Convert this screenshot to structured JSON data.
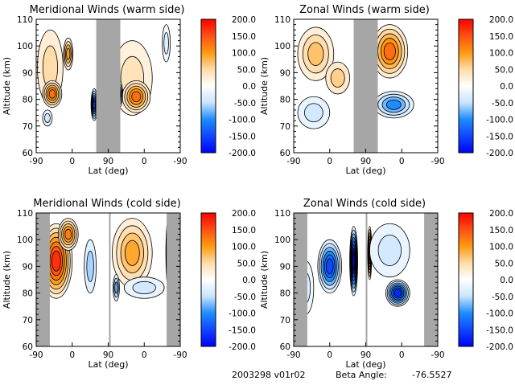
{
  "footer": {
    "date_version": "2003298 v01r02",
    "beta_label": "Beta Angle:",
    "beta_value": "-76.5527"
  },
  "chart_data": [
    {
      "type": "heatmap",
      "subtype": "filled-contour",
      "title": "Meridional Winds (warm side)",
      "xlabel": "Lat (deg)",
      "ylabel": "Altitude (km)",
      "x_ticks": [
        "-90",
        "0",
        "90",
        "0",
        "-90"
      ],
      "y_ticks": [
        "60",
        "70",
        "80",
        "90",
        "100",
        "110"
      ],
      "ylim": [
        60,
        110
      ],
      "colorbar": {
        "range": [
          -200,
          200
        ],
        "ticks": [
          "200.0",
          "150.0",
          "100.0",
          "50.0",
          "0.0",
          "-50.0",
          "-100.0",
          "-150.0",
          "-200.0"
        ]
      },
      "no_data": [
        {
          "leg": 1,
          "from": 60,
          "to": 90
        },
        {
          "leg": 2,
          "from": 90,
          "to": 60
        }
      ],
      "features": [
        {
          "leg": 1,
          "lat": -55,
          "alt": 92,
          "value": 50,
          "dlat": 32,
          "dalt": 14
        },
        {
          "leg": 1,
          "lat": -50,
          "alt": 82,
          "value": 130,
          "dlat": 24,
          "dalt": 5
        },
        {
          "leg": 1,
          "lat": -10,
          "alt": 97,
          "value": 100,
          "dlat": 12,
          "dalt": 6
        },
        {
          "leg": 2,
          "lat": 30,
          "alt": 88,
          "value": 40,
          "dlat": 50,
          "dalt": 14
        },
        {
          "leg": 2,
          "lat": 20,
          "alt": 81,
          "value": 130,
          "dlat": 35,
          "dalt": 6
        },
        {
          "leg": 1,
          "lat": 55,
          "alt": 78,
          "value": -150,
          "dlat": 8,
          "dalt": 6
        },
        {
          "leg": 2,
          "lat": 62,
          "alt": 82,
          "value": -100,
          "dlat": 8,
          "dalt": 5
        },
        {
          "leg": 1,
          "lat": -62,
          "alt": 73,
          "value": -40,
          "dlat": 12,
          "dalt": 3
        },
        {
          "leg": 2,
          "lat": -55,
          "alt": 101,
          "value": -30,
          "dlat": 10,
          "dalt": 7
        }
      ]
    },
    {
      "type": "heatmap",
      "subtype": "filled-contour",
      "title": "Zonal Winds (warm side)",
      "xlabel": "Lat (deg)",
      "ylabel": "Altitude (km)",
      "x_ticks": [
        "-90",
        "0",
        "90",
        "0",
        "-90"
      ],
      "y_ticks": [
        "60",
        "70",
        "80",
        "90",
        "100",
        "110"
      ],
      "ylim": [
        60,
        110
      ],
      "colorbar": {
        "range": [
          -200,
          200
        ],
        "ticks": [
          "200.0",
          "150.0",
          "100.0",
          "50.0",
          "0.0",
          "-50.0",
          "-100.0",
          "-150.0",
          "-200.0"
        ]
      },
      "no_data": [
        {
          "leg": 1,
          "from": 60,
          "to": 90
        },
        {
          "leg": 2,
          "from": 90,
          "to": 60
        }
      ],
      "features": [
        {
          "leg": 1,
          "lat": -35,
          "alt": 97,
          "value": 70,
          "dlat": 45,
          "dalt": 10
        },
        {
          "leg": 1,
          "lat": 20,
          "alt": 88,
          "value": 60,
          "dlat": 30,
          "dalt": 6
        },
        {
          "leg": 2,
          "lat": 30,
          "alt": 98,
          "value": 130,
          "dlat": 45,
          "dalt": 10
        },
        {
          "leg": 2,
          "lat": 20,
          "alt": 78,
          "value": -100,
          "dlat": 50,
          "dalt": 5
        },
        {
          "leg": 1,
          "lat": -40,
          "alt": 75,
          "value": -40,
          "dlat": 40,
          "dalt": 6
        }
      ]
    },
    {
      "type": "heatmap",
      "subtype": "filled-contour",
      "title": "Meridional Winds (cold side)",
      "xlabel": "Lat (deg)",
      "ylabel": "Altitude (km)",
      "x_ticks": [
        "-90",
        "0",
        "90",
        "0",
        "-90"
      ],
      "y_ticks": [
        "60",
        "70",
        "80",
        "90",
        "100",
        "110"
      ],
      "ylim": [
        60,
        110
      ],
      "colorbar": {
        "range": [
          -200,
          200
        ],
        "ticks": [
          "200.0",
          "150.0",
          "100.0",
          "50.0",
          "0.0",
          "-50.0",
          "-100.0",
          "-150.0",
          "-200.0"
        ]
      },
      "no_data": [
        {
          "leg": 1,
          "from": -90,
          "to": -56
        },
        {
          "leg": 2,
          "from": 88,
          "to": 86
        },
        {
          "leg": 2,
          "from": -56,
          "to": -90
        }
      ],
      "features": [
        {
          "leg": 1,
          "lat": -40,
          "alt": 92,
          "value": 170,
          "dlat": 40,
          "dalt": 14
        },
        {
          "leg": 1,
          "lat": -10,
          "alt": 102,
          "value": 120,
          "dlat": 25,
          "dalt": 6
        },
        {
          "leg": 2,
          "lat": 30,
          "alt": 95,
          "value": 90,
          "dlat": 50,
          "dalt": 13
        },
        {
          "leg": 2,
          "lat": -62,
          "alt": 95,
          "value": 180,
          "dlat": 8,
          "dalt": 14
        },
        {
          "leg": 1,
          "lat": 45,
          "alt": 90,
          "value": -60,
          "dlat": 15,
          "dalt": 10
        },
        {
          "leg": 2,
          "lat": 70,
          "alt": 82,
          "value": -80,
          "dlat": 8,
          "dalt": 5
        },
        {
          "leg": 2,
          "lat": 0,
          "alt": 82,
          "value": -40,
          "dlat": 50,
          "dalt": 4
        }
      ]
    },
    {
      "type": "heatmap",
      "subtype": "filled-contour",
      "title": "Zonal Winds (cold side)",
      "xlabel": "Lat (deg)",
      "ylabel": "Altitude (km)",
      "x_ticks": [
        "-90",
        "0",
        "90",
        "0",
        "-90"
      ],
      "y_ticks": [
        "60",
        "70",
        "80",
        "90",
        "100",
        "110"
      ],
      "ylim": [
        60,
        110
      ],
      "colorbar": {
        "range": [
          -200,
          200
        ],
        "ticks": [
          "200.0",
          "150.0",
          "100.0",
          "50.0",
          "0.0",
          "-50.0",
          "-100.0",
          "-150.0",
          "-200.0"
        ]
      },
      "no_data": [
        {
          "leg": 1,
          "from": -90,
          "to": -56
        },
        {
          "leg": 2,
          "from": 90,
          "to": 88
        },
        {
          "leg": 2,
          "from": -56,
          "to": -90
        }
      ],
      "features": [
        {
          "leg": 1,
          "lat": -60,
          "alt": 82,
          "value": -30,
          "dlat": 20,
          "dalt": 10
        },
        {
          "leg": 1,
          "lat": 0,
          "alt": 90,
          "value": -150,
          "dlat": 30,
          "dalt": 10
        },
        {
          "leg": 1,
          "lat": 60,
          "alt": 92,
          "value": -200,
          "dlat": 10,
          "dalt": 13
        },
        {
          "leg": 2,
          "lat": 80,
          "alt": 95,
          "value": 180,
          "dlat": 5,
          "dalt": 10
        },
        {
          "leg": 2,
          "lat": 30,
          "alt": 96,
          "value": -40,
          "dlat": 50,
          "dalt": 10
        },
        {
          "leg": 2,
          "lat": 10,
          "alt": 80,
          "value": -170,
          "dlat": 30,
          "dalt": 5
        }
      ]
    }
  ]
}
